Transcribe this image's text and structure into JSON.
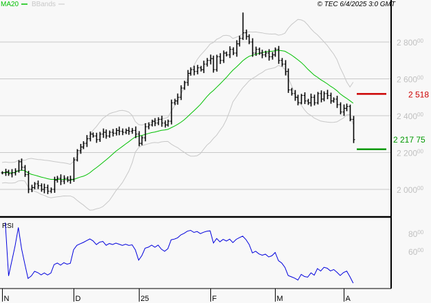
{
  "legend": {
    "ma_label": "MA20",
    "bb_label": "BBands",
    "copyright": "© TEC 6/4/2025 3:0 GMT"
  },
  "colors": {
    "ma": "#00c000",
    "bb": "#c8c8c8",
    "resistance": "#cc0000",
    "support": "#009900",
    "rsi": "#0000dd",
    "bars": "#000000"
  },
  "chart_data": [
    {
      "type": "ohlc",
      "title": "",
      "ylim": [
        1850,
        2980
      ],
      "yticks": [
        {
          "main": "2 800",
          "sup": "00",
          "v": 2800
        },
        {
          "main": "2 600",
          "sup": "00",
          "v": 2600
        },
        {
          "main": "2 400",
          "sup": "00",
          "v": 2400
        },
        {
          "main": "2 200",
          "sup": "00",
          "v": 2200
        },
        {
          "main": "2 000",
          "sup": "00",
          "v": 2000
        }
      ],
      "overlays": [
        "MA20",
        "BBands"
      ],
      "levels": [
        {
          "name": "resistance",
          "value": 2518,
          "label": "2 518 0"
        },
        {
          "name": "support",
          "value": 2217.75,
          "label": "2 217 75"
        }
      ],
      "close": [
        2090,
        2095,
        2085,
        2090,
        2100,
        2150,
        2120,
        2080,
        2000,
        2010,
        2030,
        2020,
        2000,
        2010,
        1990,
        2000,
        2050,
        2060,
        2045,
        2060,
        2050,
        2055,
        2160,
        2210,
        2230,
        2250,
        2275,
        2300,
        2290,
        2270,
        2300,
        2310,
        2290,
        2310,
        2305,
        2320,
        2315,
        2310,
        2320,
        2315,
        2320,
        2300,
        2250,
        2280,
        2340,
        2350,
        2370,
        2360,
        2380,
        2360,
        2350,
        2370,
        2470,
        2480,
        2500,
        2550,
        2580,
        2630,
        2650,
        2640,
        2660,
        2650,
        2680,
        2700,
        2710,
        2650,
        2720,
        2700,
        2740,
        2730,
        2760,
        2740,
        2790,
        2820,
        2850,
        2830,
        2800,
        2740,
        2760,
        2740,
        2730,
        2740,
        2720,
        2730,
        2760,
        2700,
        2680,
        2640,
        2540,
        2520,
        2500,
        2470,
        2510,
        2480,
        2470,
        2500,
        2470,
        2520,
        2490,
        2520,
        2510,
        2480,
        2490,
        2460,
        2420,
        2440,
        2450,
        2380,
        2270
      ]
    },
    {
      "type": "line",
      "title": "RSI",
      "ylim": [
        20,
        95
      ],
      "yticks": [
        {
          "main": "80",
          "sup": "00",
          "v": 80
        },
        {
          "main": "60",
          "sup": "00",
          "v": 60
        }
      ],
      "period": 14
    }
  ],
  "xaxis": {
    "ticks": [
      {
        "label": "N",
        "bar": 0
      },
      {
        "label": "D",
        "bar": 22
      },
      {
        "label": "25",
        "bar": 42
      },
      {
        "label": "F",
        "bar": 64
      },
      {
        "label": "M",
        "bar": 84
      },
      {
        "label": "A",
        "bar": 105
      }
    ]
  }
}
